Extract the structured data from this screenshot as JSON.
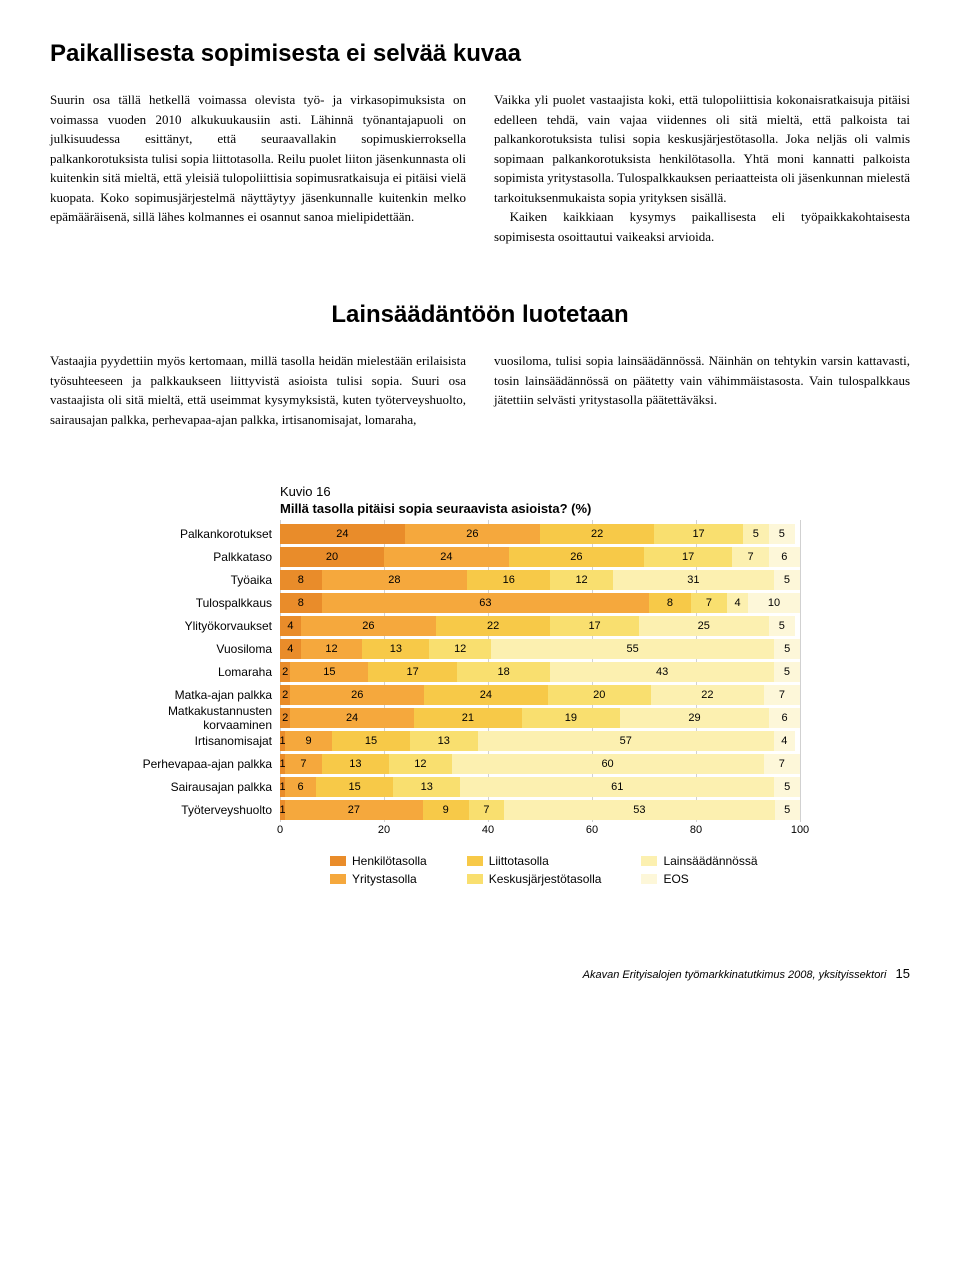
{
  "section1": {
    "title": "Paikallisesta sopimisesta ei selvää kuvaa",
    "left_paras": [
      "Suurin osa tällä hetkellä voimassa olevista työ- ja virkasopimuksista on voimassa vuoden 2010 alkukuukausiin asti. Lähinnä työnantajapuoli on julkisuudessa esittänyt, että seuraavallakin sopimuskierroksella palkankorotuksista tulisi sopia liittotasolla. Reilu puolet liiton jäsenkunnasta oli kuitenkin sitä mieltä, että yleisiä tulopoliittisia sopimusratkaisuja ei pitäisi vielä kuopata. Koko sopimusjärjestelmä näyttäytyy jäsenkunnalle kuitenkin melko epämääräisenä, sillä lähes kolmannes ei osannut sanoa mielipidettään."
    ],
    "right_paras": [
      "Vaikka yli puolet vastaajista koki, että tulopoliittisia kokonaisratkaisuja pitäisi edelleen tehdä, vain vajaa viidennes oli sitä mieltä, että palkoista tai palkankorotuksista tulisi sopia keskusjärjestötasolla. Joka neljäs oli valmis sopimaan palkankorotuksista henkilötasolla. Yhtä moni kannatti palkoista sopimista yritystasolla. Tulospalkkauksen periaatteista oli jäsenkunnan mielestä tarkoituksenmukaista sopia yrityksen sisällä.",
      "Kaiken kaikkiaan kysymys paikallisesta eli työpaikkakohtaisesta sopimisesta osoittautui vaikeaksi arvioida."
    ]
  },
  "section2": {
    "title": "Lainsäädäntöön luotetaan",
    "left_paras": [
      "Vastaajia pyydettiin myös kertomaan, millä tasolla heidän mielestään erilaisista työsuhteeseen ja palkkaukseen liittyvistä asioista tulisi sopia. Suuri osa vastaajista oli sitä mieltä, että useimmat kysymyksistä, kuten työterveyshuolto, sairausajan palkka, perhevapaa-ajan palkka, irtisanomisajat, lomaraha,"
    ],
    "right_paras": [
      "vuosiloma, tulisi sopia lainsäädännössä. Näinhän on tehtykin varsin kattavasti, tosin lainsäädännössä on päätetty vain vähimmäistasosta. Vain tulospalkkaus jätettiin selvästi yritystasolla päätettäväksi."
    ]
  },
  "chart": {
    "kuvio": "Kuvio 16",
    "title": "Millä tasolla pitäisi sopia seuraavista asioista? (%)",
    "xlim": [
      0,
      100
    ],
    "xticks": [
      0,
      20,
      40,
      60,
      80,
      100
    ],
    "grid_color": "#000000",
    "colors": [
      "#e98c2a",
      "#f5a83d",
      "#f7c948",
      "#f9df6f",
      "#fcf0b0",
      "#fdf7d9"
    ],
    "legend_labels": [
      "Henkilötasolla",
      "Yritystasolla",
      "Liittotasolla",
      "Keskusjärjestötasolla",
      "Lainsäädännössä",
      "EOS"
    ],
    "categories": [
      {
        "label": "Palkankorotukset",
        "values": [
          24,
          26,
          22,
          17,
          5,
          5
        ]
      },
      {
        "label": "Palkkataso",
        "values": [
          20,
          24,
          26,
          17,
          7,
          6
        ]
      },
      {
        "label": "Työaika",
        "values": [
          8,
          28,
          16,
          12,
          31,
          5
        ]
      },
      {
        "label": "Tulospalkkaus",
        "values": [
          8,
          63,
          8,
          7,
          4,
          10
        ]
      },
      {
        "label": "Ylityökorvaukset",
        "values": [
          4,
          26,
          22,
          17,
          25,
          5
        ]
      },
      {
        "label": "Vuosiloma",
        "values": [
          4,
          12,
          13,
          12,
          55,
          5
        ]
      },
      {
        "label": "Lomaraha",
        "values": [
          2,
          15,
          17,
          18,
          43,
          5
        ]
      },
      {
        "label": "Matka-ajan palkka",
        "values": [
          2,
          26,
          24,
          20,
          22,
          7
        ]
      },
      {
        "label": "Matkakustannusten korvaaminen",
        "values": [
          2,
          24,
          21,
          19,
          29,
          6
        ]
      },
      {
        "label": "Irtisanomisajat",
        "values": [
          1,
          9,
          15,
          13,
          57,
          4
        ]
      },
      {
        "label": "Perhevapaa-ajan palkka",
        "values": [
          1,
          7,
          13,
          12,
          60,
          7
        ]
      },
      {
        "label": "Sairausajan palkka",
        "values": [
          1,
          6,
          15,
          13,
          61,
          5
        ]
      },
      {
        "label": "Työterveyshuolto",
        "values": [
          1,
          27,
          9,
          7,
          53,
          5
        ]
      }
    ]
  },
  "footer": {
    "text": "Akavan Erityisalojen työmarkkinatutkimus 2008, yksityissektori",
    "page": "15"
  }
}
